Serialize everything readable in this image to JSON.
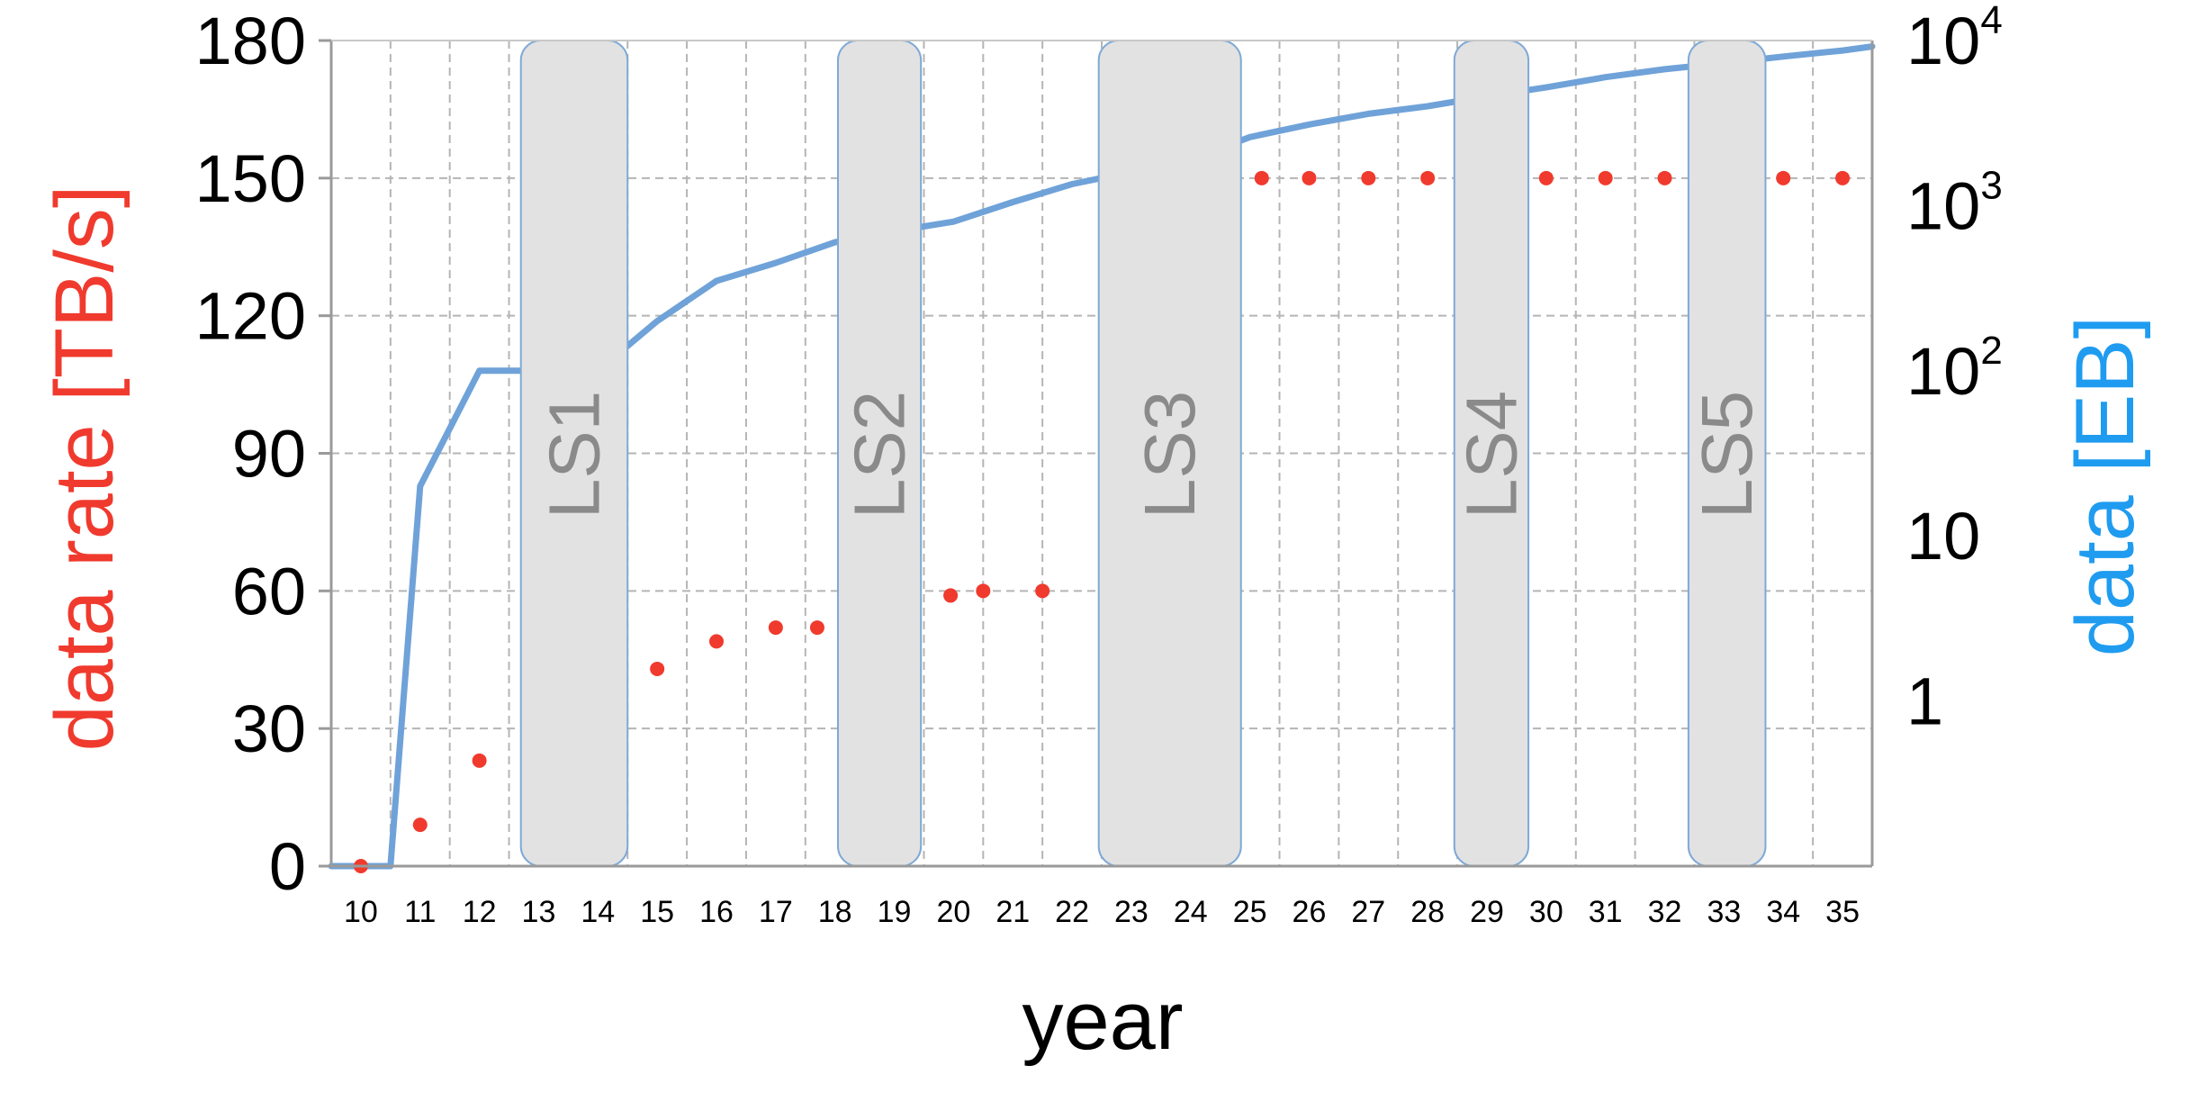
{
  "chart_data": {
    "type": "line",
    "xlabel": "year",
    "y_left": {
      "label": "data rate [TB/s]",
      "color": "#f03a2e",
      "ylim": [
        0,
        180
      ],
      "ticks": [
        0,
        30,
        60,
        90,
        120,
        150,
        180
      ]
    },
    "y_right": {
      "label_prefix": "data ",
      "label_bracket": "[EB]",
      "color": "#1f9cf0",
      "scale": "log",
      "ylim": [
        0.1,
        10000
      ],
      "ticks": [
        {
          "value": 1,
          "base": "1",
          "exp": ""
        },
        {
          "value": 10,
          "base": "10",
          "exp": ""
        },
        {
          "value": 100,
          "base": "10",
          "exp": "2"
        },
        {
          "value": 1000,
          "base": "10",
          "exp": "3"
        },
        {
          "value": 10000,
          "base": "10",
          "exp": "4"
        }
      ]
    },
    "x_ticks": [
      "10",
      "11",
      "12",
      "13",
      "14",
      "15",
      "16",
      "17",
      "18",
      "19",
      "20",
      "21",
      "22",
      "23",
      "24",
      "25",
      "26",
      "27",
      "28",
      "29",
      "30",
      "31",
      "32",
      "33",
      "34",
      "35"
    ],
    "grid": true,
    "series": [
      {
        "axis": "left",
        "style": "dots",
        "color": "#f03a2e",
        "points": [
          {
            "x": 10,
            "y": 0
          },
          {
            "x": 11,
            "y": 9
          },
          {
            "x": 12,
            "y": 23
          },
          {
            "x": 15,
            "y": 43
          },
          {
            "x": 16,
            "y": 49
          },
          {
            "x": 17,
            "y": 52
          },
          {
            "x": 17.7,
            "y": 52
          },
          {
            "x": 19.95,
            "y": 59
          },
          {
            "x": 20.5,
            "y": 60
          },
          {
            "x": 21.5,
            "y": 60
          },
          {
            "x": 25.2,
            "y": 150
          },
          {
            "x": 26,
            "y": 150
          },
          {
            "x": 27,
            "y": 150
          },
          {
            "x": 28,
            "y": 150
          },
          {
            "x": 30,
            "y": 150
          },
          {
            "x": 31,
            "y": 150
          },
          {
            "x": 32,
            "y": 150
          },
          {
            "x": 34,
            "y": 150
          },
          {
            "x": 35,
            "y": 150
          }
        ]
      },
      {
        "axis": "right",
        "style": "line",
        "color": "#6fa2d8",
        "points": [
          {
            "x": 9.5,
            "y": 0.1
          },
          {
            "x": 10.5,
            "y": 0.1
          },
          {
            "x": 11,
            "y": 20
          },
          {
            "x": 12,
            "y": 100
          },
          {
            "x": 12.2,
            "y": 100
          },
          {
            "x": 14,
            "y": 100
          },
          {
            "x": 15,
            "y": 200
          },
          {
            "x": 16,
            "y": 350
          },
          {
            "x": 17,
            "y": 450
          },
          {
            "x": 18,
            "y": 600
          },
          {
            "x": 19,
            "y": 700
          },
          {
            "x": 20,
            "y": 800
          },
          {
            "x": 21,
            "y": 1050
          },
          {
            "x": 22,
            "y": 1350
          },
          {
            "x": 24,
            "y": 1900
          },
          {
            "x": 25,
            "y": 2600
          },
          {
            "x": 26,
            "y": 3100
          },
          {
            "x": 27,
            "y": 3600
          },
          {
            "x": 28,
            "y": 4000
          },
          {
            "x": 29,
            "y": 4600
          },
          {
            "x": 30,
            "y": 5200
          },
          {
            "x": 31,
            "y": 6000
          },
          {
            "x": 32,
            "y": 6700
          },
          {
            "x": 33,
            "y": 7300
          },
          {
            "x": 34,
            "y": 8000
          },
          {
            "x": 35,
            "y": 8700
          },
          {
            "x": 35.5,
            "y": 9200
          }
        ]
      }
    ],
    "shutdowns": [
      {
        "label": "LS1",
        "x_start": 12.7,
        "x_end": 14.5
      },
      {
        "label": "LS2",
        "x_start": 18.05,
        "x_end": 19.45
      },
      {
        "label": "LS3",
        "x_start": 22.45,
        "x_end": 24.85
      },
      {
        "label": "LS4",
        "x_start": 28.45,
        "x_end": 29.7
      },
      {
        "label": "LS5",
        "x_start": 32.4,
        "x_end": 33.7
      }
    ]
  }
}
